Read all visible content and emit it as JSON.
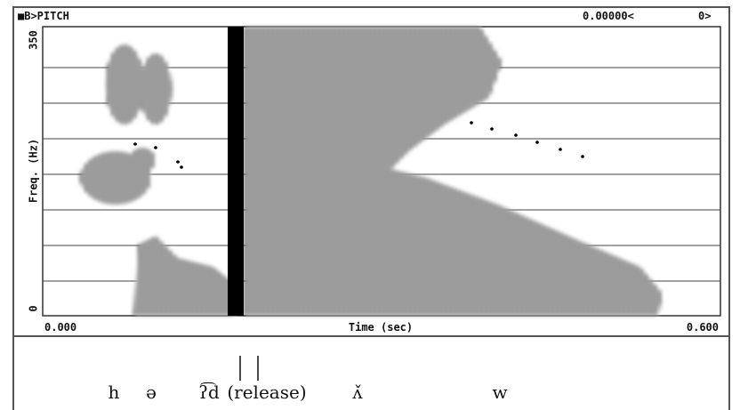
{
  "window": {
    "title": "■B>PITCH",
    "cursor": "0.00000<",
    "channel": "0>"
  },
  "plot": {
    "y_axis_label": "Freq. (Hz)",
    "y_top": "350",
    "y_bottom": "0",
    "x_axis_label": "Time (sec)",
    "x_left": "0.000",
    "x_right": "0.600"
  },
  "segments": [
    "h",
    "ə",
    "ʔ͡d",
    "(release)",
    "ʌ̌",
    "w"
  ]
}
